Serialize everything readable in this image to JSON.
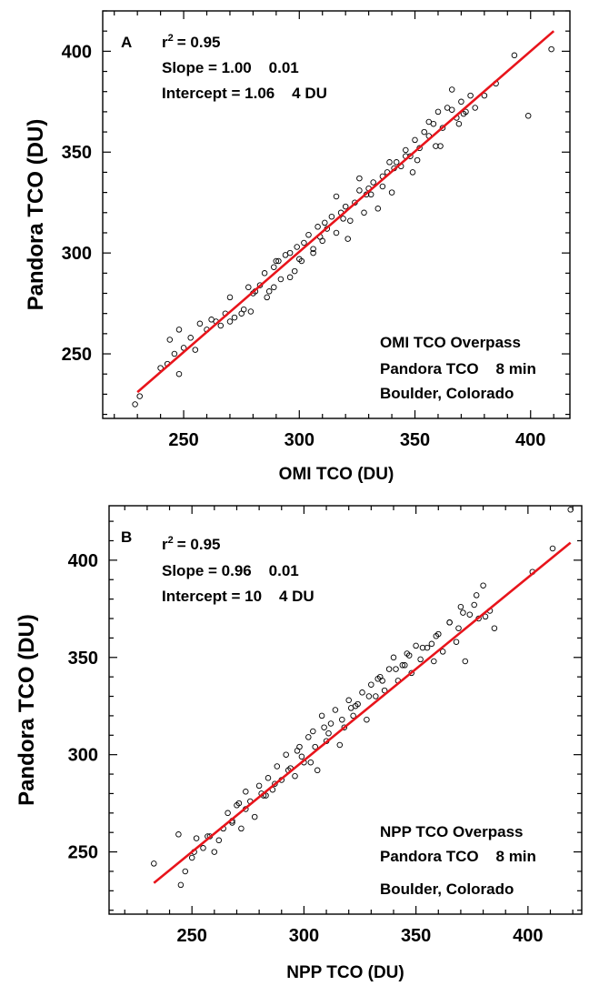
{
  "chart_data": [
    {
      "type": "scatter",
      "panel_label": "A",
      "xlabel": "OMI TCO (DU)",
      "ylabel": "Pandora TCO (DU)",
      "xlim": [
        215,
        417
      ],
      "ylim": [
        218,
        420
      ],
      "xticks": [
        250,
        300,
        350,
        400
      ],
      "yticks": [
        250,
        300,
        350,
        400
      ],
      "stats": {
        "r2": "= 0.95",
        "slope": "Slope = 1.00    0.01",
        "intercept": "Intercept = 1.06    4 DU"
      },
      "r2_prefix": "r",
      "r2_exp": "2",
      "notes": [
        "OMI TCO Overpass",
        "Pandora TCO    8 min",
        "Boulder, Colorado"
      ],
      "fit_line": {
        "x": [
          230,
          410
        ],
        "y": [
          231,
          410
        ]
      },
      "marker_color": "#000000",
      "fit_color": "#e8141b",
      "series": [
        {
          "x": [
            229,
            231,
            240,
            243,
            244,
            246,
            248,
            250,
            253,
            257,
            260,
            264,
            268,
            270,
            272,
            276,
            278,
            280,
            283,
            285,
            287,
            289,
            290,
            292,
            294,
            296,
            298,
            300,
            302,
            304,
            306,
            308,
            310,
            312,
            314,
            316,
            318,
            320,
            322,
            324,
            326,
            328,
            330,
            332,
            334,
            336,
            338,
            340,
            342,
            344,
            346,
            348,
            350,
            352,
            354,
            356,
            358,
            360,
            362,
            364,
            366,
            368,
            370,
            372,
            374,
            376,
            380,
            385,
            393,
            399,
            409,
            262,
            270,
            275,
            281,
            286,
            291,
            296,
            301,
            306,
            311,
            316,
            321,
            326,
            331,
            336,
            341,
            346,
            351,
            356,
            361,
            366,
            371,
            248,
            255,
            266,
            279,
            289,
            299,
            309,
            319,
            329,
            339,
            349,
            359,
            369
          ],
          "y": [
            225,
            229,
            243,
            245,
            257,
            250,
            262,
            253,
            258,
            265,
            262,
            266,
            270,
            278,
            268,
            272,
            283,
            280,
            284,
            290,
            281,
            293,
            296,
            287,
            299,
            300,
            291,
            297,
            305,
            309,
            300,
            313,
            306,
            312,
            318,
            310,
            320,
            323,
            316,
            325,
            331,
            320,
            332,
            335,
            322,
            338,
            340,
            330,
            345,
            343,
            351,
            348,
            356,
            352,
            360,
            358,
            364,
            370,
            362,
            372,
            381,
            367,
            375,
            370,
            378,
            372,
            378,
            384,
            398,
            368,
            401,
            267,
            266,
            270,
            281,
            278,
            296,
            288,
            296,
            302,
            315,
            328,
            307,
            337,
            329,
            333,
            342,
            348,
            346,
            365,
            353,
            371,
            369,
            240,
            252,
            264,
            271,
            283,
            303,
            308,
            317,
            329,
            345,
            340,
            353,
            364
          ]
        }
      ]
    },
    {
      "type": "scatter",
      "panel_label": "B",
      "xlabel": "NPP TCO (DU)",
      "ylabel": "Pandora TCO (DU)",
      "xlim": [
        213,
        424
      ],
      "ylim": [
        218,
        428
      ],
      "xticks": [
        250,
        300,
        350,
        400
      ],
      "yticks": [
        250,
        300,
        350,
        400
      ],
      "stats": {
        "r2": "= 0.95",
        "slope": "Slope = 0.96    0.01",
        "intercept": "Intercept = 10    4 DU"
      },
      "r2_prefix": "r",
      "r2_exp": "2",
      "notes": [
        "NPP TCO Overpass",
        "Pandora TCO    8 min",
        "Boulder, Colorado"
      ],
      "fit_line": {
        "x": [
          233,
          419
        ],
        "y": [
          234,
          409
        ]
      },
      "marker_color": "#000000",
      "fit_color": "#e8141b",
      "series": [
        {
          "x": [
            233,
            244,
            245,
            247,
            250,
            252,
            255,
            258,
            260,
            264,
            266,
            268,
            270,
            272,
            274,
            276,
            278,
            280,
            282,
            284,
            286,
            288,
            290,
            292,
            294,
            296,
            298,
            300,
            302,
            304,
            306,
            308,
            310,
            312,
            314,
            316,
            318,
            320,
            322,
            324,
            326,
            328,
            330,
            332,
            334,
            336,
            338,
            340,
            342,
            344,
            346,
            348,
            350,
            352,
            355,
            358,
            360,
            362,
            365,
            368,
            370,
            372,
            374,
            376,
            378,
            380,
            383,
            385,
            402,
            411,
            419,
            262,
            268,
            274,
            281,
            287,
            293,
            299,
            305,
            311,
            317,
            323,
            329,
            335,
            341,
            347,
            353,
            359,
            365,
            371,
            377,
            251,
            257,
            271,
            283,
            297,
            303,
            309,
            321,
            333,
            345,
            357,
            369,
            381
          ],
          "y": [
            244,
            259,
            233,
            240,
            247,
            257,
            252,
            258,
            250,
            262,
            270,
            266,
            274,
            262,
            281,
            276,
            268,
            284,
            279,
            288,
            282,
            294,
            287,
            300,
            293,
            289,
            304,
            296,
            309,
            312,
            292,
            320,
            307,
            316,
            323,
            305,
            314,
            328,
            320,
            326,
            332,
            318,
            336,
            330,
            340,
            333,
            344,
            350,
            338,
            346,
            352,
            342,
            356,
            349,
            355,
            348,
            362,
            353,
            368,
            358,
            376,
            348,
            372,
            377,
            370,
            387,
            374,
            365,
            394,
            406,
            426,
            256,
            265,
            272,
            280,
            285,
            292,
            299,
            304,
            311,
            318,
            325,
            330,
            338,
            344,
            351,
            355,
            361,
            368,
            373,
            382,
            250,
            258,
            275,
            279,
            302,
            296,
            314,
            324,
            339,
            346,
            357,
            365,
            371
          ]
        }
      ]
    }
  ]
}
